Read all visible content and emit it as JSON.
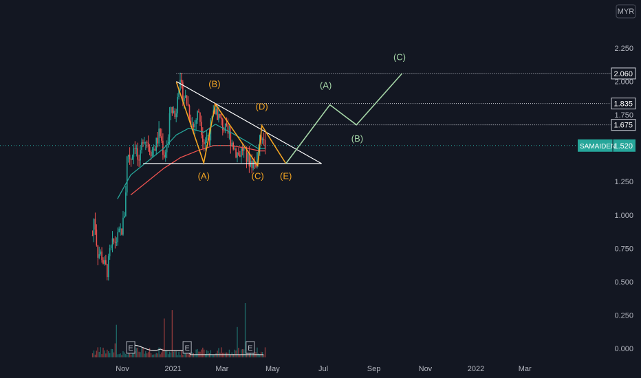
{
  "chart_data": {
    "type": "candlestick",
    "currency": "MYR",
    "symbol": "SAMAIDEN",
    "last_price": "1.520",
    "y_ticks": [
      "2.250",
      "2.000",
      "1.750",
      "1.500",
      "1.250",
      "1.000",
      "0.750",
      "0.500",
      "0.250",
      "0.000"
    ],
    "y_tick_values": [
      2.25,
      2.0,
      1.75,
      1.5,
      1.25,
      1.0,
      0.75,
      0.5,
      0.25,
      0.0
    ],
    "ylim": [
      -0.03,
      2.4
    ],
    "x_ticks": [
      "Nov",
      "2021",
      "Mar",
      "May",
      "Jul",
      "Sep",
      "Nov",
      "2022",
      "Mar"
    ],
    "x_tick_days": [
      0,
      61,
      120,
      181,
      242,
      303,
      365,
      426,
      485
    ],
    "xlim_days": [
      -36,
      510
    ],
    "price_levels": [
      {
        "label": "2.060",
        "value": 2.06,
        "from_day": 65
      },
      {
        "label": "1.835",
        "value": 1.835,
        "from_day": 111
      },
      {
        "label": "1.675",
        "value": 1.675,
        "from_day": 163
      }
    ],
    "triangle": {
      "upper": [
        [
          65,
          2.0
        ],
        [
          240,
          1.385
        ]
      ],
      "lower": [
        [
          25,
          1.385
        ],
        [
          240,
          1.385
        ]
      ]
    },
    "wave_abcde": [
      [
        65,
        1.995
      ],
      [
        98,
        1.39
      ],
      [
        112,
        1.83
      ],
      [
        163,
        1.37
      ],
      [
        168,
        1.67
      ],
      [
        197,
        1.385
      ]
    ],
    "wave_projection": [
      [
        197,
        1.385
      ],
      [
        250,
        1.825
      ],
      [
        282,
        1.675
      ],
      [
        337,
        2.06
      ]
    ],
    "labels_orange": [
      {
        "text": "(A)",
        "day": 98,
        "price": 1.27
      },
      {
        "text": "(B)",
        "day": 111,
        "price": 1.96
      },
      {
        "text": "(C)",
        "day": 163,
        "price": 1.27
      },
      {
        "text": "(D)",
        "day": 168,
        "price": 1.79
      },
      {
        "text": "(E)",
        "day": 197,
        "price": 1.27
      }
    ],
    "labels_green": [
      {
        "text": "(A)",
        "day": 245,
        "price": 1.95
      },
      {
        "text": "(B)",
        "day": 283,
        "price": 1.55
      },
      {
        "text": "(C)",
        "day": 334,
        "price": 2.16
      }
    ],
    "earnings_markers": [
      "E",
      "E",
      "E"
    ],
    "earnings_days": [
      10,
      78,
      154
    ],
    "ohlc_anchors_days": [
      -36,
      -34,
      -30,
      -25,
      -22,
      -18,
      -15,
      -10,
      -6,
      -2,
      0,
      3,
      6,
      10,
      15,
      20,
      25,
      30,
      35,
      40,
      45,
      50,
      55,
      58,
      61,
      64,
      67,
      72,
      78,
      85,
      92,
      98,
      105,
      112,
      118,
      125,
      130,
      135,
      140,
      145,
      150,
      155,
      160,
      163,
      166,
      168,
      171,
      172
    ],
    "ohlc_anchors_close": [
      0.85,
      1.0,
      0.72,
      0.7,
      0.62,
      0.58,
      0.72,
      0.8,
      0.82,
      0.88,
      0.9,
      1.05,
      1.48,
      1.42,
      1.55,
      1.35,
      1.6,
      1.55,
      1.48,
      1.52,
      1.62,
      1.45,
      1.55,
      1.82,
      1.78,
      1.72,
      2.0,
      1.92,
      1.85,
      1.65,
      1.78,
      1.55,
      1.62,
      1.8,
      1.7,
      1.62,
      1.58,
      1.5,
      1.45,
      1.5,
      1.42,
      1.4,
      1.38,
      1.48,
      1.55,
      1.65,
      1.5,
      1.52
    ],
    "ema_fast": [
      [
        -6,
        1.12
      ],
      [
        10,
        1.3
      ],
      [
        30,
        1.4
      ],
      [
        50,
        1.5
      ],
      [
        65,
        1.6
      ],
      [
        80,
        1.65
      ],
      [
        98,
        1.62
      ],
      [
        112,
        1.68
      ],
      [
        130,
        1.62
      ],
      [
        150,
        1.55
      ],
      [
        163,
        1.5
      ],
      [
        172,
        1.5
      ]
    ],
    "ema_slow": [
      [
        10,
        1.15
      ],
      [
        30,
        1.25
      ],
      [
        50,
        1.35
      ],
      [
        70,
        1.43
      ],
      [
        90,
        1.48
      ],
      [
        110,
        1.52
      ],
      [
        130,
        1.52
      ],
      [
        150,
        1.5
      ],
      [
        165,
        1.48
      ],
      [
        172,
        1.48
      ]
    ]
  }
}
